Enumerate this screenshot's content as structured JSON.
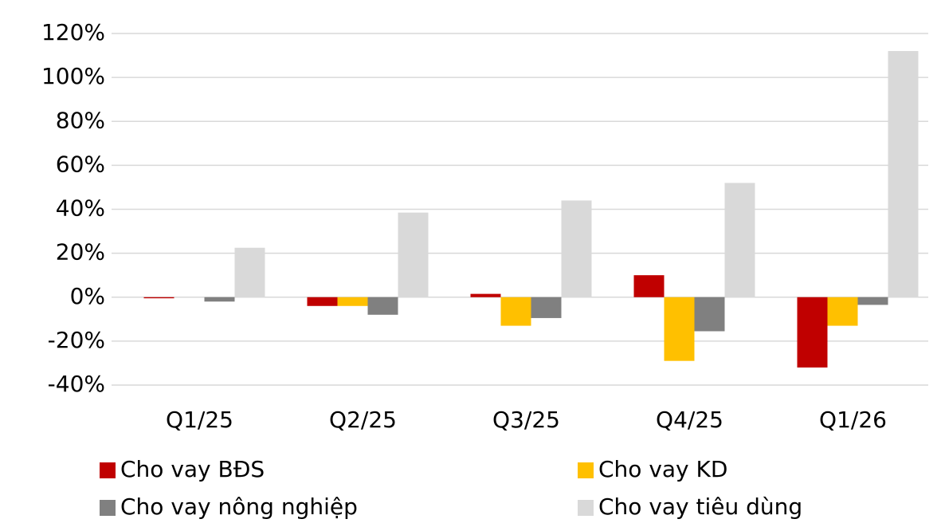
{
  "chart_data": {
    "type": "bar",
    "categories": [
      "Q1/25",
      "Q2/25",
      "Q3/25",
      "Q4/25",
      "Q1/26"
    ],
    "series": [
      {
        "name": "Cho vay BĐS",
        "color": "#c00000",
        "values": [
          -0.5,
          -4,
          1.5,
          10,
          -32
        ]
      },
      {
        "name": "Cho vay KD",
        "color": "#ffc000",
        "values": [
          0,
          -4,
          -13,
          -29,
          -13
        ]
      },
      {
        "name": "Cho vay nông nghiệp",
        "color": "#808080",
        "values": [
          -2,
          -8,
          -9.5,
          -15.5,
          -3.5
        ]
      },
      {
        "name": "Cho vay tiêu dùng",
        "color": "#d9d9d9",
        "values": [
          22.5,
          38.5,
          44,
          52,
          112
        ]
      }
    ],
    "ylim": [
      -40,
      120
    ],
    "yticks": [
      {
        "value": -40,
        "label": "-40%"
      },
      {
        "value": -20,
        "label": "-20%"
      },
      {
        "value": 0,
        "label": "0%"
      },
      {
        "value": 20,
        "label": "20%"
      },
      {
        "value": 40,
        "label": "40%"
      },
      {
        "value": 60,
        "label": "60%"
      },
      {
        "value": 80,
        "label": "80%"
      },
      {
        "value": 100,
        "label": "100%"
      },
      {
        "value": 120,
        "label": "120%"
      }
    ],
    "grid": true
  }
}
